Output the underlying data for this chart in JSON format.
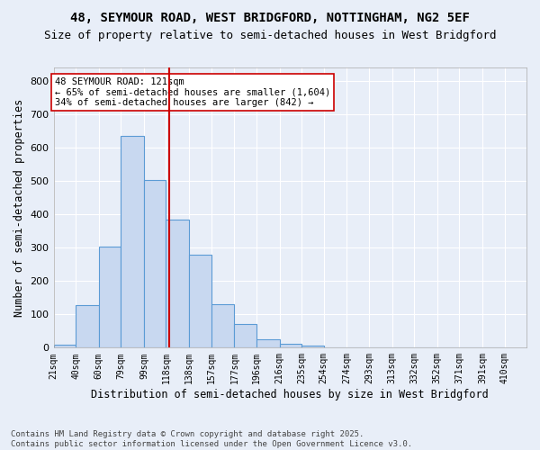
{
  "title1": "48, SEYMOUR ROAD, WEST BRIDGFORD, NOTTINGHAM, NG2 5EF",
  "title2": "Size of property relative to semi-detached houses in West Bridgford",
  "xlabel": "Distribution of semi-detached houses by size in West Bridgford",
  "ylabel": "Number of semi-detached properties",
  "bin_labels": [
    "21sqm",
    "40sqm",
    "60sqm",
    "79sqm",
    "99sqm",
    "118sqm",
    "138sqm",
    "157sqm",
    "177sqm",
    "196sqm",
    "216sqm",
    "235sqm",
    "254sqm",
    "274sqm",
    "293sqm",
    "313sqm",
    "332sqm",
    "352sqm",
    "371sqm",
    "391sqm",
    "410sqm"
  ],
  "bin_edges": [
    21,
    40,
    60,
    79,
    99,
    118,
    138,
    157,
    177,
    196,
    216,
    235,
    254,
    274,
    293,
    313,
    332,
    352,
    371,
    391,
    410
  ],
  "bar_heights": [
    8,
    128,
    303,
    635,
    503,
    383,
    278,
    130,
    70,
    25,
    12,
    6,
    0,
    0,
    0,
    0,
    0,
    0,
    0,
    0
  ],
  "bar_color": "#c8d8f0",
  "bar_edge_color": "#5b9bd5",
  "property_size": 121,
  "vline_color": "#cc0000",
  "annotation_line1": "48 SEYMOUR ROAD: 121sqm",
  "annotation_line2": "← 65% of semi-detached houses are smaller (1,604)",
  "annotation_line3": "34% of semi-detached houses are larger (842) →",
  "annotation_box_color": "#ffffff",
  "annotation_box_edge": "#cc0000",
  "background_color": "#e8eef8",
  "grid_color": "#ffffff",
  "ylim": [
    0,
    840
  ],
  "yticks": [
    0,
    100,
    200,
    300,
    400,
    500,
    600,
    700,
    800
  ],
  "footer": "Contains HM Land Registry data © Crown copyright and database right 2025.\nContains public sector information licensed under the Open Government Licence v3.0.",
  "title1_fontsize": 10,
  "title2_fontsize": 9,
  "xlabel_fontsize": 8.5,
  "ylabel_fontsize": 8.5,
  "annotation_fontsize": 7.5,
  "footer_fontsize": 6.5
}
